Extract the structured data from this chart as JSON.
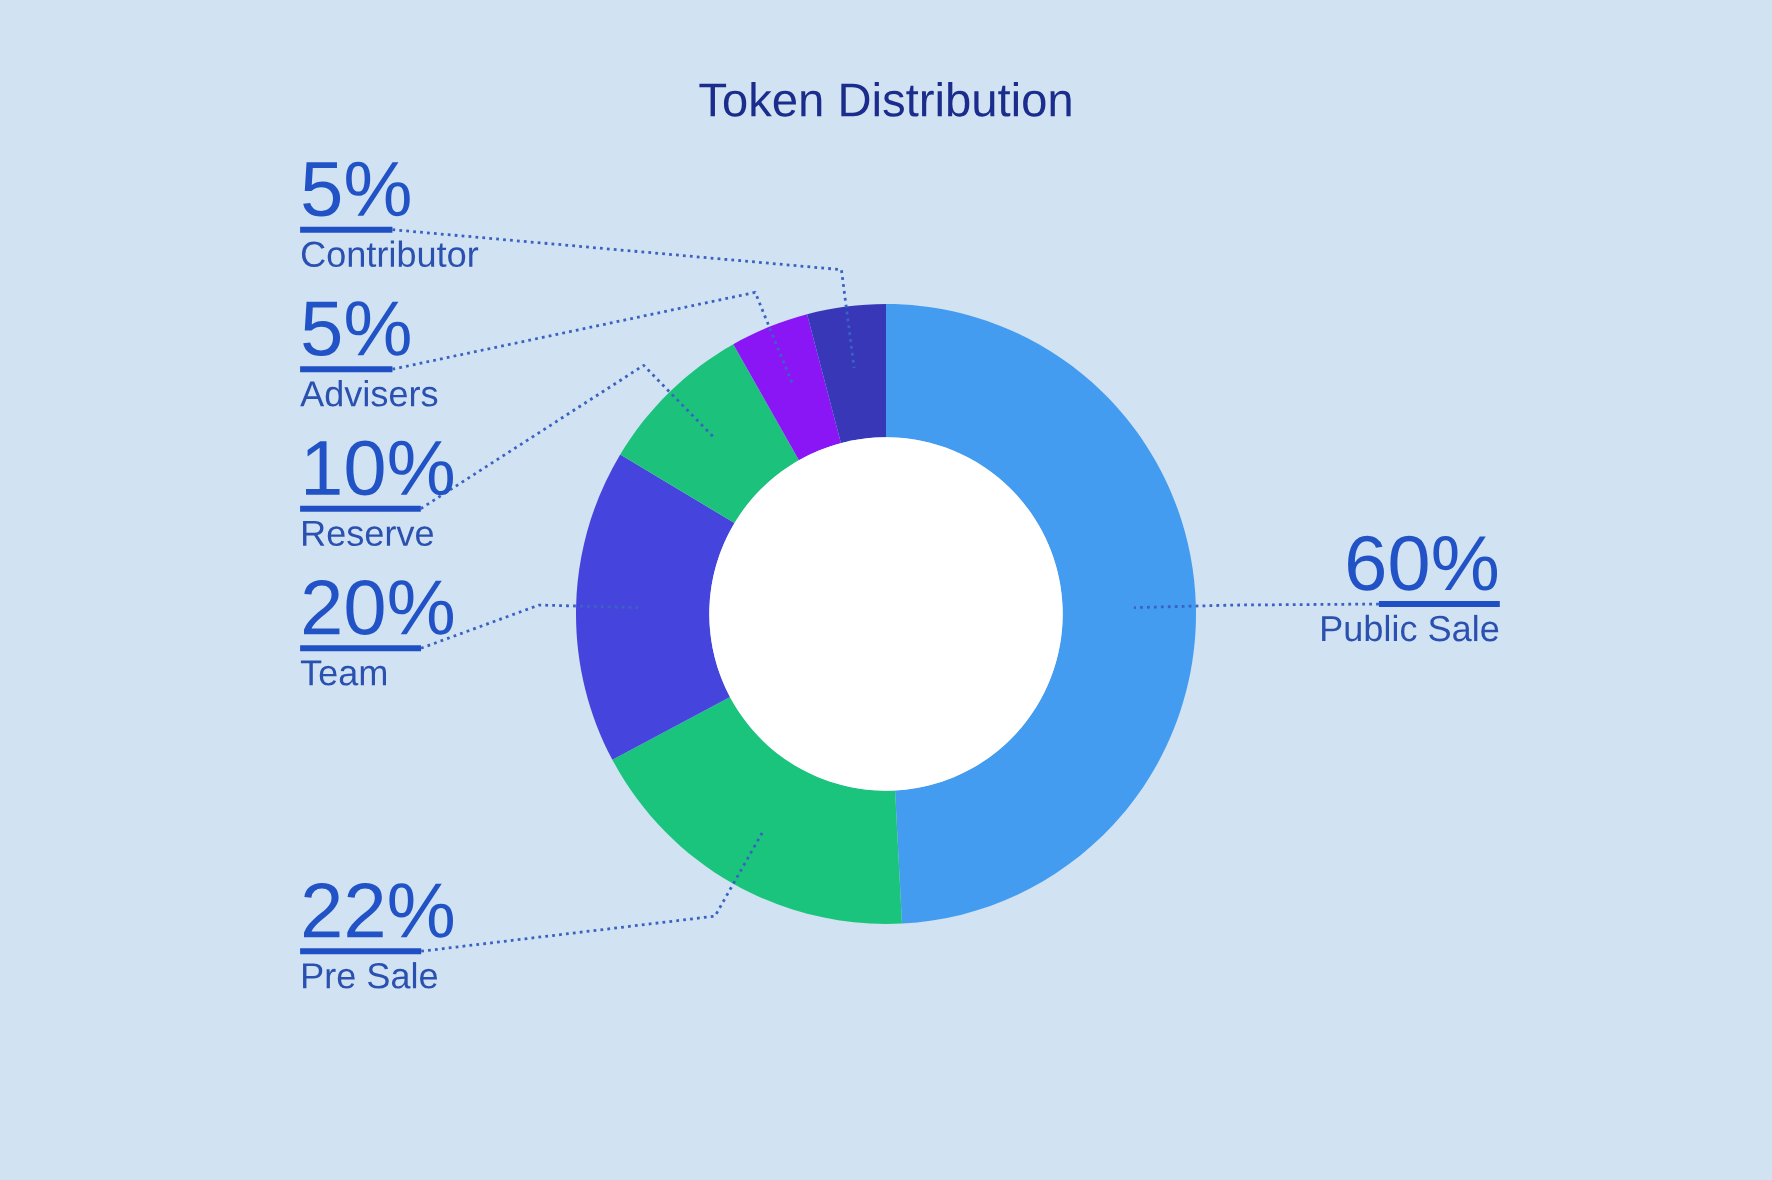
{
  "chart_data": {
    "type": "donut",
    "title": "Token Distribution",
    "categories": [
      "Public Sale",
      "Pre Sale",
      "Team",
      "Reserve",
      "Advisers",
      "Contributor"
    ],
    "values": [
      60,
      22,
      20,
      10,
      5,
      5
    ],
    "colors": [
      "#439cf0",
      "#1bc47d",
      "#4545dd",
      "#1cc27c",
      "#8b16f5",
      "#3737b8"
    ],
    "value_labels": [
      "60%",
      "22%",
      "20%",
      "10%",
      "5%",
      "5%"
    ]
  }
}
